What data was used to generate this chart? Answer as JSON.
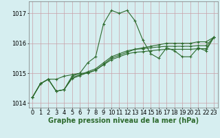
{
  "title": "Graphe pression niveau de la mer (hPa)",
  "xlabel_hours": [
    0,
    1,
    2,
    3,
    4,
    5,
    6,
    7,
    8,
    9,
    10,
    11,
    12,
    13,
    14,
    15,
    16,
    17,
    18,
    19,
    20,
    21,
    22,
    23
  ],
  "series": [
    [
      1014.2,
      1014.65,
      1014.8,
      1014.8,
      1014.9,
      1014.95,
      1015.0,
      1015.35,
      1015.55,
      1016.65,
      1017.1,
      1017.0,
      1017.1,
      1016.75,
      1016.1,
      1015.65,
      1015.5,
      1015.85,
      1015.75,
      1015.55,
      1015.55,
      1015.85,
      1015.75,
      1016.2
    ],
    [
      1014.2,
      1014.65,
      1014.8,
      1014.4,
      1014.45,
      1014.9,
      1015.0,
      1015.0,
      1015.1,
      1015.3,
      1015.5,
      1015.6,
      1015.7,
      1015.8,
      1015.85,
      1015.9,
      1015.95,
      1016.0,
      1016.0,
      1016.0,
      1016.0,
      1016.05,
      1016.05,
      1016.2
    ],
    [
      1014.2,
      1014.65,
      1014.8,
      1014.4,
      1014.45,
      1014.85,
      1014.95,
      1015.05,
      1015.15,
      1015.35,
      1015.55,
      1015.65,
      1015.75,
      1015.8,
      1015.82,
      1015.85,
      1015.88,
      1015.9,
      1015.9,
      1015.9,
      1015.9,
      1015.92,
      1015.92,
      1016.2
    ],
    [
      1014.2,
      1014.65,
      1014.8,
      1014.4,
      1014.45,
      1014.82,
      1014.92,
      1015.02,
      1015.1,
      1015.28,
      1015.45,
      1015.55,
      1015.65,
      1015.7,
      1015.72,
      1015.75,
      1015.78,
      1015.8,
      1015.8,
      1015.8,
      1015.8,
      1015.82,
      1015.82,
      1016.2
    ]
  ],
  "line_color": "#2d6a2d",
  "marker": "+",
  "marker_size": 3,
  "marker_linewidth": 0.8,
  "line_width": 0.8,
  "bg_color": "#d6eef0",
  "grid_color": "#c8a0a8",
  "ylim": [
    1013.85,
    1017.4
  ],
  "yticks": [
    1014,
    1015,
    1016,
    1017
  ],
  "tick_fontsize": 6,
  "label_fontsize": 7,
  "fig_width": 3.2,
  "fig_height": 2.0,
  "dpi": 100
}
